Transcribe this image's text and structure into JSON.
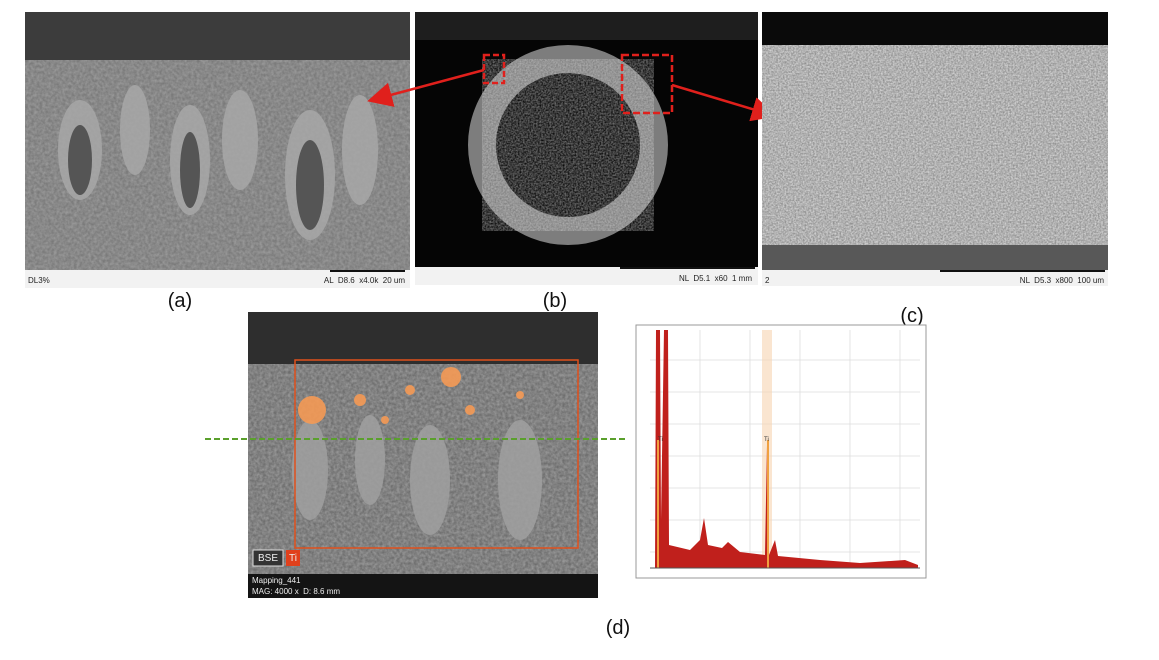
{
  "panels": [
    {
      "label": "(a)",
      "caption_left": "DL3%",
      "caption_right": "AL  D8.6  x4.0k  20 um"
    },
    {
      "label": "(b)",
      "caption_right": "NL  D5.1  x60  1 mm"
    },
    {
      "label": "(c)",
      "caption_left": "2",
      "caption_right": "NL  D5.3  x800  100 um"
    },
    {
      "label": "(d)",
      "tags": [
        "BSE",
        "Ti"
      ],
      "caption_lines": [
        "Mapping_441",
        "MAG: 4000 x  D: 8.6 mm"
      ],
      "spectrum_peak_labels": [
        "Ti",
        "Ti"
      ]
    }
  ]
}
